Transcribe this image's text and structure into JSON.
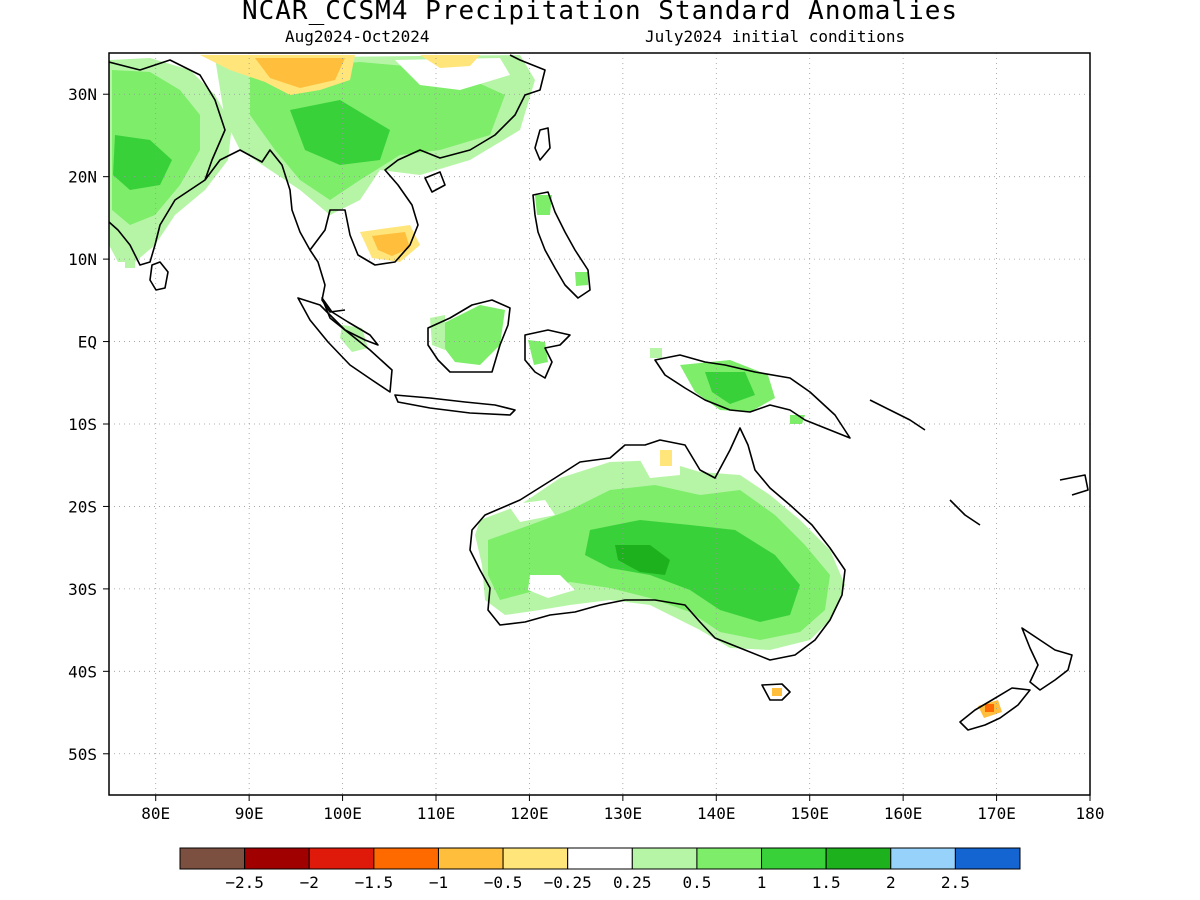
{
  "header": {
    "title": "NCAR_CCSM4 Precipitation Standard Anomalies",
    "period": "Aug2024-Oct2024",
    "init": "July2024 initial conditions"
  },
  "map": {
    "lon_range": [
      75,
      180
    ],
    "lat_range": [
      -55,
      35
    ],
    "lon_ticks": [
      "80E",
      "90E",
      "100E",
      "110E",
      "120E",
      "130E",
      "140E",
      "150E",
      "160E",
      "170E",
      "180"
    ],
    "lat_ticks": [
      "30N",
      "20N",
      "10N",
      "EQ",
      "10S",
      "20S",
      "30S",
      "40S",
      "50S"
    ]
  },
  "colorbar": {
    "colors": [
      "#7b5041",
      "#a00000",
      "#e01a0a",
      "#ff6a00",
      "#ffbe3c",
      "#ffe57a",
      "#ffffff",
      "#b6f5a6",
      "#7ded6a",
      "#38d13a",
      "#1eb11e",
      "#96d2fa",
      "#1464d2"
    ],
    "labels": [
      "-2.5",
      "-2",
      "-1.5",
      "-1",
      "-0.5",
      "-0.25",
      "0.25",
      "0.5",
      "1",
      "1.5",
      "2",
      "2.5"
    ]
  }
}
